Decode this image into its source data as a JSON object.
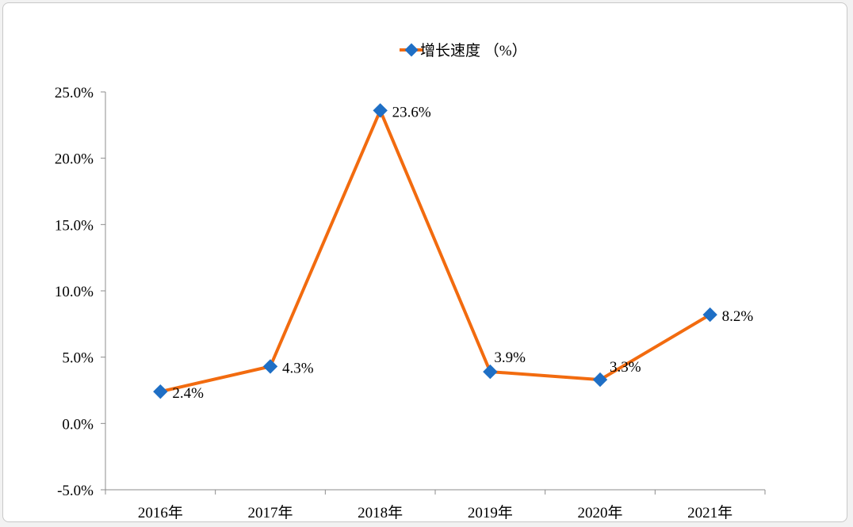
{
  "chart_data": {
    "type": "line",
    "title": "",
    "xlabel": "",
    "ylabel": "",
    "categories": [
      "2016年",
      "2017年",
      "2018年",
      "2019年",
      "2020年",
      "2021年"
    ],
    "series": [
      {
        "name": "增长速度 （%）",
        "values": [
          2.4,
          4.3,
          23.6,
          3.9,
          3.3,
          8.2
        ],
        "data_labels": [
          "2.4%",
          "4.3%",
          "23.6%",
          "3.9%",
          "3.3%",
          "8.2%"
        ]
      }
    ],
    "ylim": [
      -5,
      25
    ],
    "yticks": [
      25,
      20,
      15,
      10,
      5,
      0,
      -5
    ],
    "ytick_labels": [
      "25.0%",
      "20.0%",
      "15.0%",
      "10.0%",
      "5.0%",
      "0.0%",
      "-5.0%"
    ],
    "grid": false,
    "legend_position": "top",
    "colors": {
      "line": "#F26B0F",
      "marker": "#1F6FC5",
      "axis": "#8C8C8C"
    }
  }
}
